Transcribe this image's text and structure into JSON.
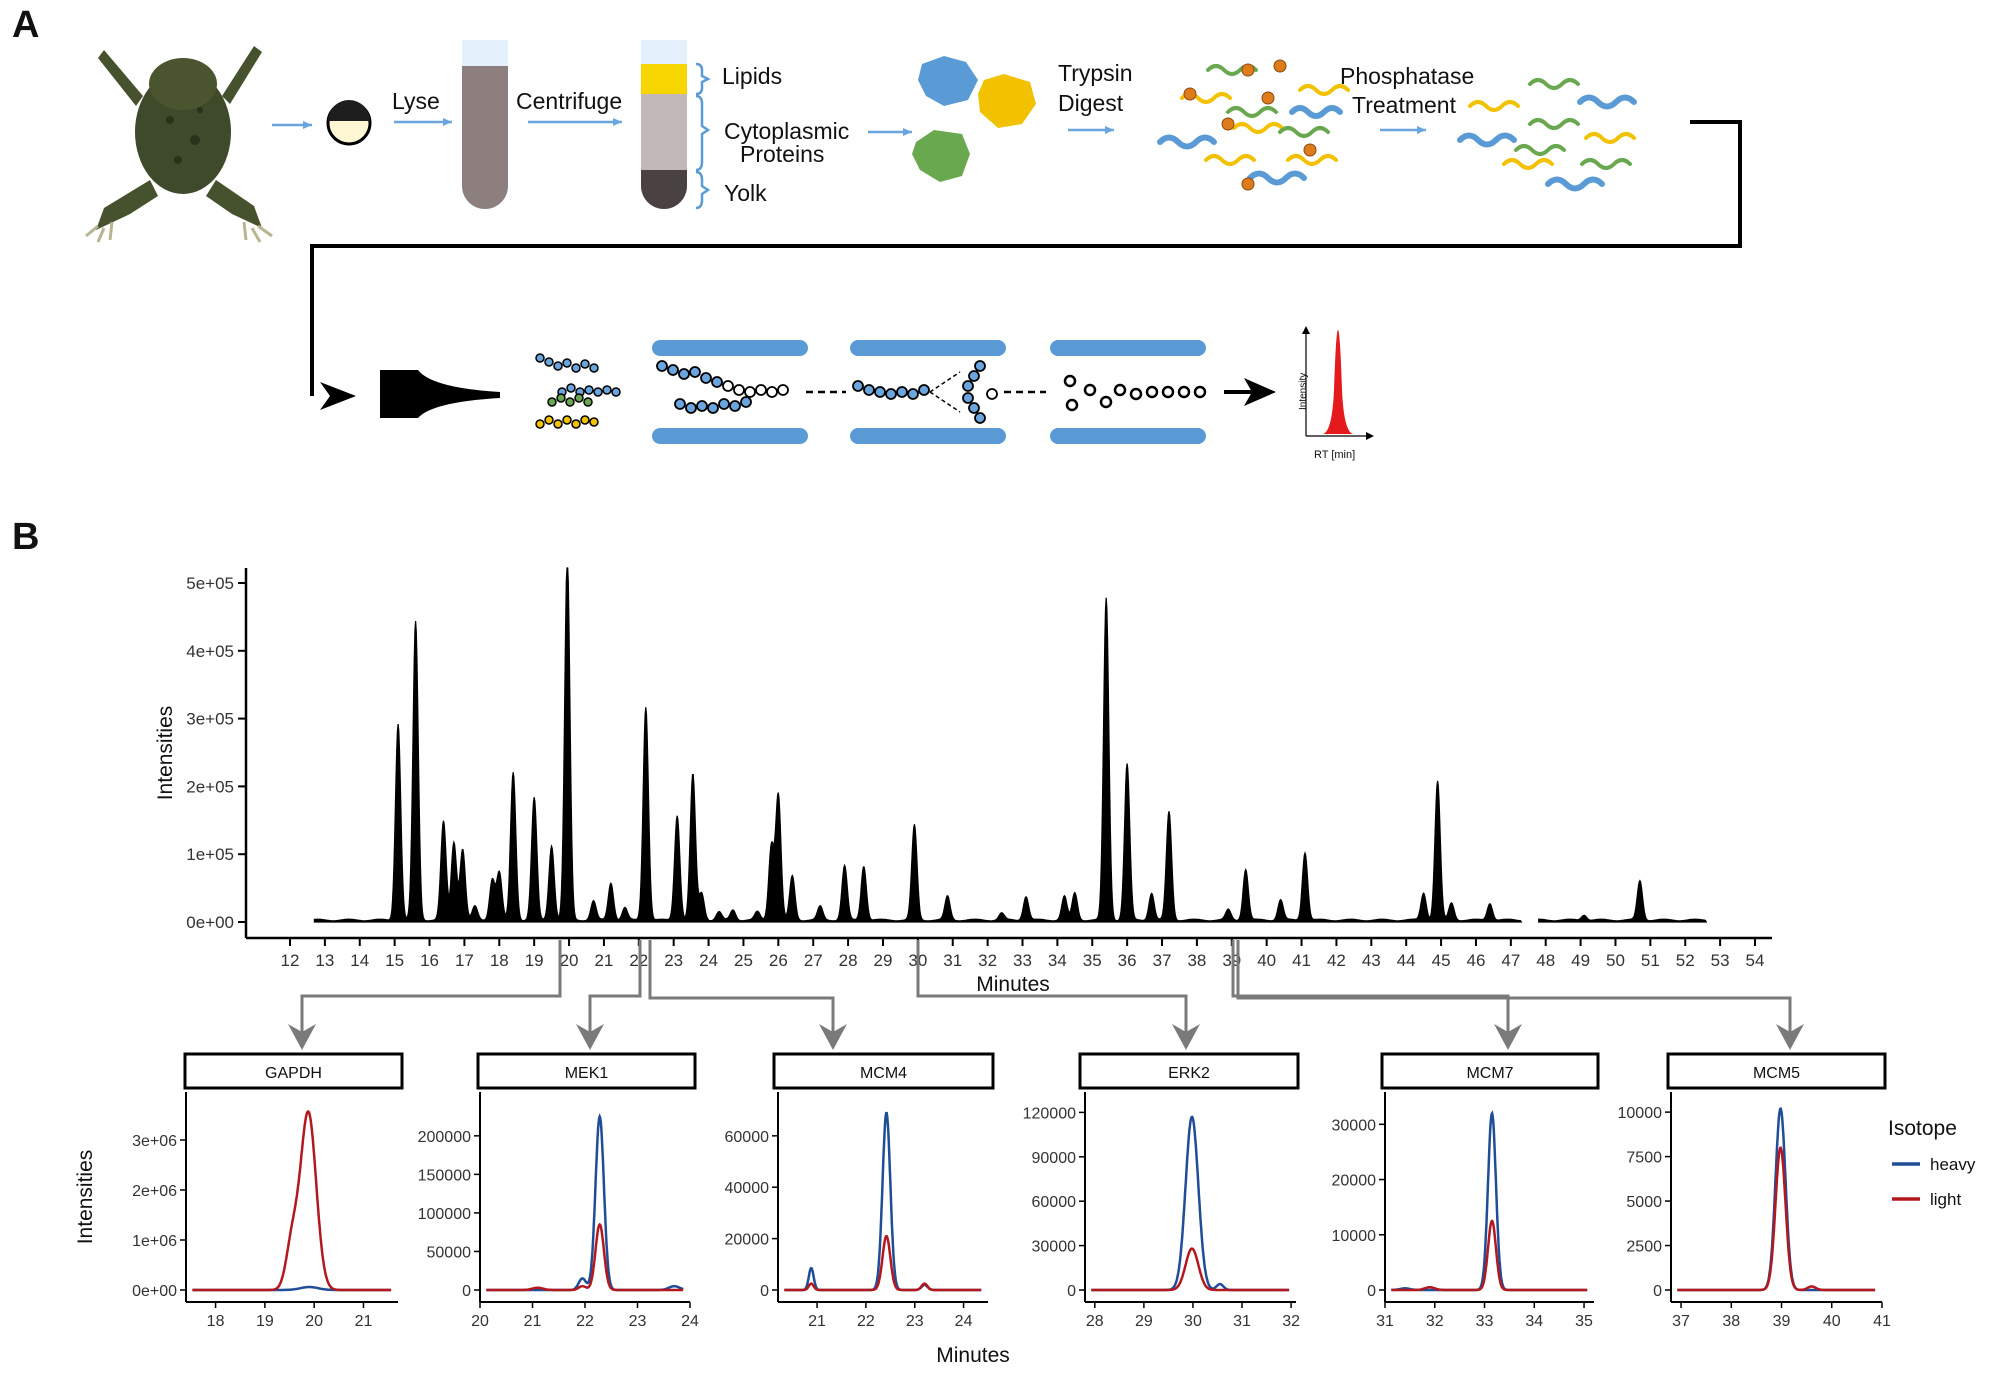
{
  "panels": {
    "a": "A",
    "b": "B"
  },
  "workflow": {
    "steps": {
      "lyse": "Lyse",
      "centrifuge": "Centrifuge",
      "lipids": "Lipids",
      "cytoplasmic_1": "Cytoplasmic",
      "cytoplasmic_2": "Proteins",
      "yolk": "Yolk",
      "trypsin_1": "Trypsin",
      "trypsin_2": "Digest",
      "phosphatase_1": "Phosphatase",
      "phosphatase_2": "Treatment"
    },
    "mini_plot": {
      "ylabel": "Intensity",
      "xlabel": "RT [min]"
    }
  },
  "colors": {
    "heavy": "#1f4e96",
    "light": "#b3181f",
    "arrow_blue": "#6aa5de",
    "tube_grey": "#8c7f7e",
    "chromatogram": "#000000",
    "connector": "#7a7a7a",
    "peptide_blue": "#5b9bd5",
    "peptide_green": "#6aa84f",
    "peptide_yellow": "#f2c200",
    "phospho_orange": "#e07b1a"
  },
  "chart_data": [
    {
      "type": "area",
      "xlabel": "Minutes",
      "ylabel": "Intensities",
      "xlim": [
        11.2,
        54.6
      ],
      "ylim": [
        0,
        520000
      ],
      "xticks": [
        12,
        13,
        14,
        15,
        16,
        17,
        18,
        19,
        20,
        21,
        22,
        23,
        24,
        25,
        26,
        27,
        28,
        29,
        30,
        31,
        32,
        33,
        34,
        35,
        36,
        37,
        38,
        39,
        40,
        41,
        42,
        43,
        44,
        45,
        46,
        47,
        48,
        49,
        50,
        51,
        52,
        53,
        54
      ],
      "yticks": [
        0,
        100000,
        200000,
        300000,
        400000,
        500000
      ],
      "ytick_labels": [
        "0e+00",
        "1e+05",
        "2e+05",
        "3e+05",
        "4e+05",
        "5e+05"
      ],
      "peaks": [
        {
          "rt": 15.1,
          "height": 290000
        },
        {
          "rt": 15.6,
          "height": 440000
        },
        {
          "rt": 16.4,
          "height": 145000
        },
        {
          "rt": 16.7,
          "height": 115000
        },
        {
          "rt": 16.95,
          "height": 105000
        },
        {
          "rt": 17.3,
          "height": 20000
        },
        {
          "rt": 17.8,
          "height": 60000
        },
        {
          "rt": 18.0,
          "height": 70000
        },
        {
          "rt": 18.4,
          "height": 218000
        },
        {
          "rt": 19.0,
          "height": 180000
        },
        {
          "rt": 19.5,
          "height": 110000
        },
        {
          "rt": 19.95,
          "height": 540000
        },
        {
          "rt": 20.7,
          "height": 28000
        },
        {
          "rt": 21.2,
          "height": 55000
        },
        {
          "rt": 21.6,
          "height": 18000
        },
        {
          "rt": 22.2,
          "height": 315000
        },
        {
          "rt": 23.1,
          "height": 155000
        },
        {
          "rt": 23.55,
          "height": 215000
        },
        {
          "rt": 23.8,
          "height": 40000
        },
        {
          "rt": 24.3,
          "height": 12000
        },
        {
          "rt": 24.7,
          "height": 15000
        },
        {
          "rt": 25.4,
          "height": 12000
        },
        {
          "rt": 25.8,
          "height": 110000
        },
        {
          "rt": 26.0,
          "height": 185000
        },
        {
          "rt": 26.4,
          "height": 65000
        },
        {
          "rt": 27.2,
          "height": 20000
        },
        {
          "rt": 27.9,
          "height": 80000
        },
        {
          "rt": 28.45,
          "height": 80000
        },
        {
          "rt": 29.9,
          "height": 140000
        },
        {
          "rt": 30.85,
          "height": 35000
        },
        {
          "rt": 32.4,
          "height": 10000
        },
        {
          "rt": 33.1,
          "height": 35000
        },
        {
          "rt": 34.2,
          "height": 35000
        },
        {
          "rt": 34.5,
          "height": 40000
        },
        {
          "rt": 35.4,
          "height": 475000
        },
        {
          "rt": 36.0,
          "height": 230000
        },
        {
          "rt": 36.7,
          "height": 40000
        },
        {
          "rt": 37.2,
          "height": 160000
        },
        {
          "rt": 38.9,
          "height": 15000
        },
        {
          "rt": 39.4,
          "height": 75000
        },
        {
          "rt": 40.4,
          "height": 30000
        },
        {
          "rt": 41.1,
          "height": 100000
        },
        {
          "rt": 44.5,
          "height": 40000
        },
        {
          "rt": 44.9,
          "height": 205000
        },
        {
          "rt": 45.3,
          "height": 25000
        },
        {
          "rt": 46.4,
          "height": 25000
        },
        {
          "rt": 49.1,
          "height": 8000
        },
        {
          "rt": 50.7,
          "height": 58000
        }
      ],
      "segments": [
        [
          12.7,
          47.3
        ],
        [
          47.8,
          52.6
        ]
      ]
    },
    {
      "type": "line",
      "title": "GAPDH",
      "ylabel": "Intensities",
      "xlim": [
        17.4,
        21.7
      ],
      "ylim": [
        0,
        3700000
      ],
      "xticks": [
        18,
        19,
        20,
        21
      ],
      "yticks": [
        0,
        1000000,
        2000000,
        3000000
      ],
      "ytick_labels": [
        "0e+00",
        "1e+06",
        "2e+06",
        "3e+06"
      ],
      "series": [
        {
          "name": "heavy",
          "peaks": [
            {
              "rt": 19.9,
              "height": 60000,
              "sigma": 0.18
            }
          ]
        },
        {
          "name": "light",
          "peaks": [
            {
              "rt": 19.88,
              "height": 3550000,
              "sigma": 0.16
            },
            {
              "rt": 19.55,
              "height": 900000,
              "sigma": 0.12
            }
          ]
        }
      ]
    },
    {
      "type": "line",
      "title": "MEK1",
      "xlim": [
        20,
        24
      ],
      "ylim": [
        0,
        240000
      ],
      "xticks": [
        20,
        21,
        22,
        23,
        24
      ],
      "yticks": [
        0,
        50000,
        100000,
        150000,
        200000
      ],
      "ytick_labels": [
        "0",
        "50000",
        "100000",
        "150000",
        "200000"
      ],
      "series": [
        {
          "name": "heavy",
          "peaks": [
            {
              "rt": 22.28,
              "height": 225000,
              "sigma": 0.08
            },
            {
              "rt": 21.95,
              "height": 15000,
              "sigma": 0.07
            },
            {
              "rt": 23.7,
              "height": 5000,
              "sigma": 0.1
            }
          ]
        },
        {
          "name": "light",
          "peaks": [
            {
              "rt": 22.28,
              "height": 85000,
              "sigma": 0.08
            },
            {
              "rt": 21.95,
              "height": 5000,
              "sigma": 0.07
            },
            {
              "rt": 21.1,
              "height": 3000,
              "sigma": 0.1
            }
          ]
        }
      ]
    },
    {
      "type": "line",
      "title": "MCM4",
      "xlim": [
        20.2,
        24.5
      ],
      "ylim": [
        0,
        72000
      ],
      "xticks": [
        21,
        22,
        23,
        24
      ],
      "yticks": [
        0,
        20000,
        40000,
        60000
      ],
      "ytick_labels": [
        "0",
        "20000",
        "40000",
        "60000"
      ],
      "series": [
        {
          "name": "heavy",
          "peaks": [
            {
              "rt": 22.42,
              "height": 69000,
              "sigma": 0.08
            },
            {
              "rt": 20.88,
              "height": 8500,
              "sigma": 0.05
            },
            {
              "rt": 23.2,
              "height": 2000,
              "sigma": 0.06
            }
          ]
        },
        {
          "name": "light",
          "peaks": [
            {
              "rt": 22.42,
              "height": 21000,
              "sigma": 0.08
            },
            {
              "rt": 20.88,
              "height": 2500,
              "sigma": 0.05
            },
            {
              "rt": 23.2,
              "height": 2500,
              "sigma": 0.06
            }
          ]
        }
      ]
    },
    {
      "type": "line",
      "title": "ERK2",
      "xlim": [
        27.8,
        32.1
      ],
      "ylim": [
        0,
        125000
      ],
      "xticks": [
        28,
        29,
        30,
        31,
        32
      ],
      "yticks": [
        0,
        30000,
        60000,
        90000,
        120000
      ],
      "ytick_labels": [
        "0",
        "30000",
        "60000",
        "90000",
        "120000"
      ],
      "series": [
        {
          "name": "heavy",
          "peaks": [
            {
              "rt": 29.98,
              "height": 117000,
              "sigma": 0.13
            },
            {
              "rt": 30.55,
              "height": 4000,
              "sigma": 0.07
            }
          ]
        },
        {
          "name": "light",
          "peaks": [
            {
              "rt": 29.98,
              "height": 28000,
              "sigma": 0.13
            }
          ]
        }
      ]
    },
    {
      "type": "line",
      "title": "MCM7",
      "xlim": [
        31,
        35.2
      ],
      "ylim": [
        0,
        33500
      ],
      "xticks": [
        31,
        32,
        33,
        34,
        35
      ],
      "yticks": [
        0,
        10000,
        20000,
        30000
      ],
      "ytick_labels": [
        "0",
        "10000",
        "20000",
        "30000"
      ],
      "series": [
        {
          "name": "heavy",
          "peaks": [
            {
              "rt": 33.15,
              "height": 32000,
              "sigma": 0.08
            },
            {
              "rt": 31.4,
              "height": 300,
              "sigma": 0.1
            }
          ]
        },
        {
          "name": "light",
          "peaks": [
            {
              "rt": 33.15,
              "height": 12500,
              "sigma": 0.08
            },
            {
              "rt": 31.9,
              "height": 500,
              "sigma": 0.1
            }
          ]
        }
      ]
    },
    {
      "type": "line",
      "title": "MCM5",
      "xlim": [
        36.8,
        41
      ],
      "ylim": [
        0,
        10400
      ],
      "xticks": [
        37,
        38,
        39,
        40,
        41
      ],
      "yticks": [
        0,
        2500,
        5000,
        7500,
        10000
      ],
      "ytick_labels": [
        "0",
        "2500",
        "5000",
        "7500",
        "10000"
      ],
      "series": [
        {
          "name": "heavy",
          "peaks": [
            {
              "rt": 38.98,
              "height": 10200,
              "sigma": 0.1
            }
          ]
        },
        {
          "name": "light",
          "peaks": [
            {
              "rt": 38.98,
              "height": 8000,
              "sigma": 0.1
            },
            {
              "rt": 39.6,
              "height": 200,
              "sigma": 0.08
            }
          ]
        }
      ]
    }
  ],
  "shared": {
    "xlabel": "Minutes"
  },
  "legend": {
    "title": "Isotope",
    "entries": [
      "heavy",
      "light"
    ]
  }
}
